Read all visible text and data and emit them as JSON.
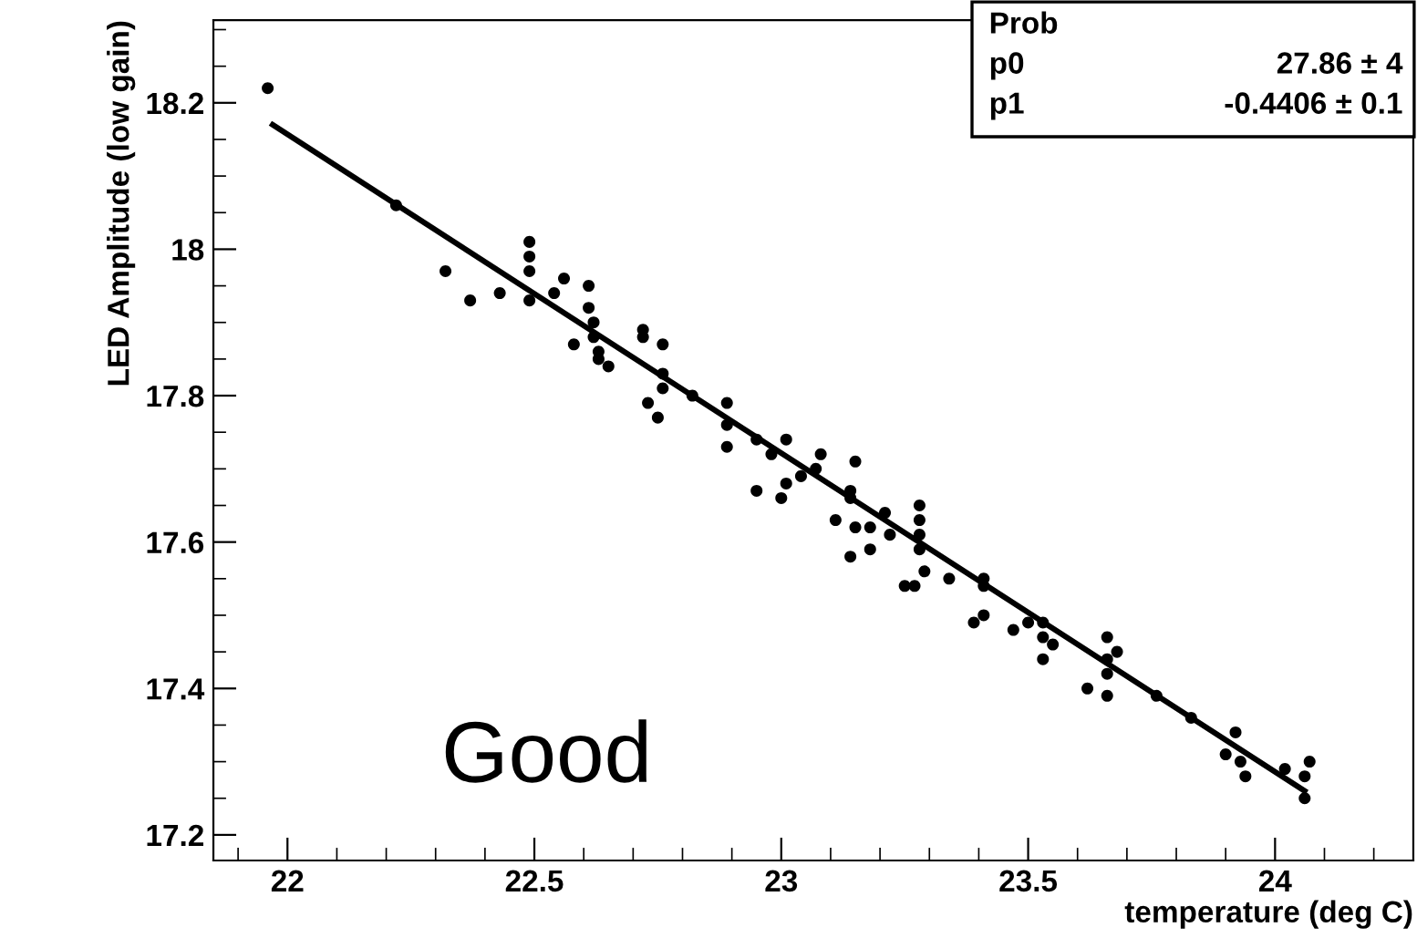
{
  "chart_data": {
    "type": "scatter",
    "xlabel": "temperature (deg C)",
    "ylabel": "LED Amplitude (low gain)",
    "xlim": [
      21.85,
      24.28
    ],
    "ylim": [
      17.165,
      18.313
    ],
    "xticks": [
      22,
      22.5,
      23,
      23.5,
      24
    ],
    "yticks": [
      17.2,
      17.4,
      17.6,
      17.8,
      18,
      18.2
    ],
    "grid": false,
    "marker": "circle",
    "series": [
      {
        "color": "#000000",
        "x": [
          21.96,
          22.22,
          22.32,
          22.37,
          22.43,
          22.49,
          22.49,
          22.49,
          22.49,
          22.54,
          22.56,
          22.58,
          22.61,
          22.61,
          22.62,
          22.62,
          22.63,
          22.63,
          22.65,
          22.72,
          22.72,
          22.76,
          22.76,
          22.76,
          22.73,
          22.75,
          22.82,
          22.89,
          22.89,
          22.89,
          22.95,
          22.98,
          23.01,
          22.95,
          23.0,
          23.01,
          23.04,
          23.08,
          23.07,
          23.15,
          23.14,
          23.14,
          23.11,
          23.15,
          23.14,
          23.18,
          23.21,
          23.22,
          23.18,
          23.28,
          23.28,
          23.28,
          23.28,
          23.25,
          23.27,
          23.29,
          23.34,
          23.41,
          23.41,
          23.41,
          23.39,
          23.47,
          23.5,
          23.53,
          23.53,
          23.55,
          23.53,
          23.66,
          23.66,
          23.68,
          23.66,
          23.62,
          23.66,
          23.76,
          23.83,
          23.92,
          23.9,
          23.93,
          23.94,
          24.02,
          24.07,
          24.06,
          24.06
        ],
        "values": [
          18.22,
          18.06,
          17.97,
          17.93,
          17.94,
          18.01,
          17.99,
          17.97,
          17.93,
          17.94,
          17.96,
          17.87,
          17.95,
          17.92,
          17.9,
          17.88,
          17.86,
          17.85,
          17.84,
          17.89,
          17.88,
          17.87,
          17.83,
          17.81,
          17.79,
          17.77,
          17.8,
          17.79,
          17.76,
          17.73,
          17.74,
          17.72,
          17.74,
          17.67,
          17.66,
          17.68,
          17.69,
          17.72,
          17.7,
          17.71,
          17.67,
          17.66,
          17.63,
          17.62,
          17.58,
          17.62,
          17.64,
          17.61,
          17.59,
          17.65,
          17.63,
          17.61,
          17.59,
          17.54,
          17.54,
          17.56,
          17.55,
          17.55,
          17.54,
          17.5,
          17.49,
          17.48,
          17.49,
          17.49,
          17.47,
          17.46,
          17.44,
          17.47,
          17.44,
          17.45,
          17.42,
          17.4,
          17.39,
          17.39,
          17.36,
          17.34,
          17.31,
          17.3,
          17.28,
          17.29,
          17.3,
          17.28,
          17.25
        ]
      },
      {
        "type": "line",
        "color": "#000000",
        "marker": "none",
        "x": [
          21.97,
          24.06
        ],
        "values": [
          18.17,
          17.26
        ]
      }
    ],
    "annotations": [
      "Good",
      "Prob",
      "p0",
      "27.86 ± 4",
      "p1",
      "-0.4406 ± 0.1"
    ]
  }
}
